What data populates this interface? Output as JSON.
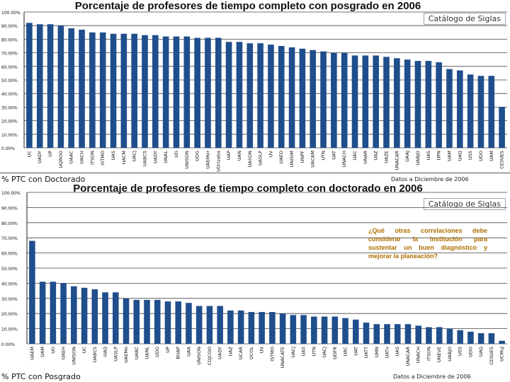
{
  "footer_top_left": "% PTC con Doctorado",
  "footer_top_right": "Datos a Diciembre de 2006",
  "footer_bottom_left": "% PTC con Posgrado",
  "footer_bottom_right": "Datos a Diciembre de 2006",
  "catalog_label": "Catálogo de Siglas",
  "note": "¿Qué otras correlaciones debe considerar la institución para sustentar un buen diagnóstico y mejorar la planeación?",
  "colors": {
    "bar": "#1f4e8c",
    "grid": "#444444"
  },
  "chart_data": [
    {
      "type": "bar",
      "title": "Porcentaje de profesores de tiempo completo con posgrado en 2006",
      "ylim": [
        0,
        100
      ],
      "yticks": [
        "0.00%",
        "10.00%",
        "20.00%",
        "30.00%",
        "40.00%",
        "50.00%",
        "60.00%",
        "70.00%",
        "80.00%",
        "90.00%",
        "100.00%"
      ],
      "categories": [
        "UC",
        "UADY",
        "UP",
        "UQROO",
        "UAAC",
        "UACH",
        "ITSON",
        "ISTMO",
        "UAS",
        "UACM",
        "UACJ",
        "UABCS",
        "UADY",
        "UNAL",
        "UG",
        "UNISON",
        "UDG",
        "UAEMor",
        "UOrizaba",
        "UAP",
        "UAN",
        "UASON",
        "UASLP",
        "UV",
        "UAEO",
        "UNISIM",
        "UNPF",
        "UACAM",
        "UTN",
        "UAT",
        "UNACH",
        "UAC",
        "UNAR",
        "UAZ",
        "UAZE",
        "UNACAR",
        "UAAJ",
        "UABJO",
        "UAS",
        "UPN",
        "UAM",
        "UAQ",
        "USS",
        "UDO",
        "UAM",
        "CESUES"
      ],
      "values": [
        92,
        91,
        91,
        90,
        88,
        87,
        85,
        85,
        84,
        84,
        84,
        83,
        83,
        82,
        82,
        82,
        81,
        81,
        81,
        78,
        78,
        77,
        77,
        76,
        75,
        74,
        73,
        72,
        71,
        70,
        70,
        68,
        68,
        68,
        67,
        66,
        65,
        64,
        64,
        63,
        58,
        57,
        54,
        53,
        53,
        30
      ]
    },
    {
      "type": "bar",
      "title": "Porcentaje de profesores de tiempo completo con doctorado en 2006",
      "ylim": [
        0,
        100
      ],
      "yticks": [
        "0.00%",
        "10.00%",
        "20.00%",
        "30.00%",
        "40.00%",
        "50.00%",
        "60.00%",
        "70.00%",
        "80.00%",
        "90.00%",
        "100.00%"
      ],
      "categories": [
        "UAEM",
        "UAM",
        "UG",
        "UAEH",
        "UNISON",
        "UC",
        "UABCS",
        "UAQ",
        "UASLP",
        "UAEMo",
        "UABC",
        "UANL",
        "UDG",
        "UP",
        "BUAP",
        "UAA",
        "UNISON",
        "COJCOO",
        "UADY",
        "UAZ",
        "UCAR",
        "UCOL",
        "UV",
        "ISTMO",
        "UNACATE",
        "UACJ",
        "UAS",
        "UTN",
        "UACJ",
        "UDFR",
        "UAC",
        "UAT",
        "UATT",
        "UMN",
        "UATx",
        "UAS",
        "UNACAR",
        "UNACH",
        "ITSON",
        "UNEVE",
        "UABJO",
        "USS",
        "UDO",
        "UAQ",
        "CESUES",
        "UCMuJ"
      ],
      "values": [
        68,
        41,
        41,
        40,
        38,
        37,
        36,
        34,
        34,
        30,
        29,
        29,
        29,
        28,
        28,
        27,
        25,
        25,
        25,
        22,
        22,
        21,
        21,
        21,
        20,
        19,
        19,
        18,
        18,
        18,
        17,
        16,
        14,
        13,
        13,
        13,
        13,
        12,
        11,
        11,
        10,
        9,
        8,
        7,
        7,
        2
      ]
    }
  ]
}
